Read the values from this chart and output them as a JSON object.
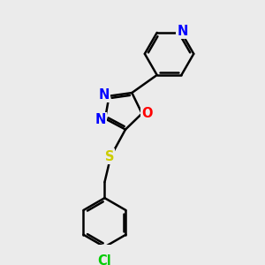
{
  "background_color": "#ebebeb",
  "bond_color": "#000000",
  "bond_width": 1.8,
  "atom_colors": {
    "N": "#0000ff",
    "O": "#ff0000",
    "S": "#cccc00",
    "Cl": "#00cc00",
    "C": "#000000"
  },
  "font_size_atom": 10.5
}
